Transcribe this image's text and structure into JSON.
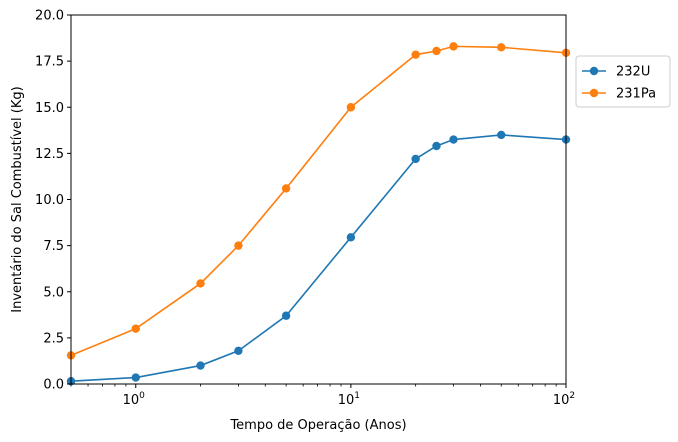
{
  "chart_data": {
    "type": "line",
    "title": "",
    "xlabel": "Tempo de Operação (Anos)",
    "ylabel": "Inventário do Sal Combustível (Kg)",
    "xscale": "log",
    "xlim": [
      0.5,
      100
    ],
    "ylim": [
      0,
      20
    ],
    "x_ticks": [
      1,
      10,
      100
    ],
    "x_tick_labels": [
      {
        "base": "10",
        "exp": "0"
      },
      {
        "base": "10",
        "exp": "1"
      },
      {
        "base": "10",
        "exp": "2"
      }
    ],
    "y_ticks": [
      0.0,
      2.5,
      5.0,
      7.5,
      10.0,
      12.5,
      15.0,
      17.5,
      20.0
    ],
    "y_tick_labels": [
      "0.0",
      "2.5",
      "5.0",
      "7.5",
      "10.0",
      "12.5",
      "15.0",
      "17.5",
      "20.0"
    ],
    "grid": false,
    "legend_position": "upper-right-outside",
    "series": [
      {
        "name": "232U",
        "color": "#1f77b4",
        "marker": "circle",
        "x": [
          0.5,
          1,
          2,
          3,
          5,
          10,
          20,
          25,
          30,
          50,
          100
        ],
        "y": [
          0.15,
          0.35,
          1.0,
          1.8,
          3.7,
          7.95,
          12.2,
          12.9,
          13.25,
          13.5,
          13.25
        ]
      },
      {
        "name": "231Pa",
        "color": "#ff7f0e",
        "marker": "circle",
        "x": [
          0.5,
          1,
          2,
          3,
          5,
          10,
          20,
          25,
          30,
          50,
          100
        ],
        "y": [
          1.55,
          3.0,
          5.45,
          7.5,
          10.6,
          15.0,
          17.85,
          18.05,
          18.3,
          18.25,
          17.95
        ]
      }
    ]
  }
}
